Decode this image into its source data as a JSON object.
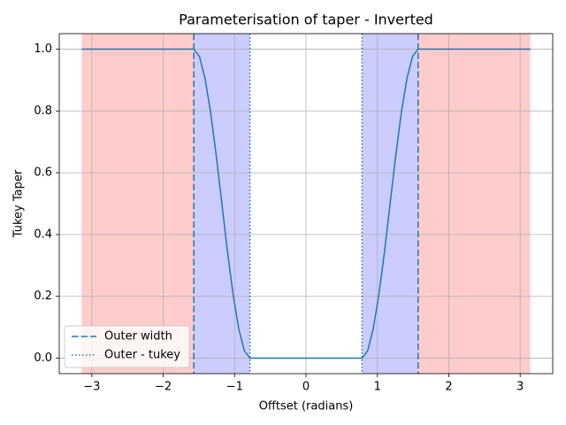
{
  "chart_data": {
    "type": "line",
    "title": "Parameterisation of taper - Inverted",
    "x_label": "Offtset (radians)",
    "y_label": "Tukey Taper",
    "xlim": [
      -3.456,
      3.456
    ],
    "ylim": [
      -0.05,
      1.05
    ],
    "xticks": [
      {
        "value": -3,
        "label": "−3"
      },
      {
        "value": -2,
        "label": "−2"
      },
      {
        "value": -1,
        "label": "−1"
      },
      0,
      1,
      2,
      3
    ],
    "yticks": [
      {
        "value": 0,
        "label": "0.0"
      },
      0.2,
      0.4,
      0.6,
      0.8,
      {
        "value": 1,
        "label": "1.0"
      }
    ],
    "grid": true,
    "legend": "lower left",
    "x": [
      -3.142,
      -1.571,
      -1.492,
      -1.414,
      -1.335,
      -1.257,
      -1.178,
      -1.1,
      -1.021,
      -0.942,
      -0.864,
      -0.785,
      0.785,
      0.864,
      0.942,
      1.021,
      1.1,
      1.178,
      1.257,
      1.335,
      1.414,
      1.492,
      1.571,
      3.142
    ],
    "series": [
      {
        "color": "#1f77b4",
        "values": [
          1,
          1,
          0.976,
          0.905,
          0.794,
          0.655,
          0.5,
          0.345,
          0.206,
          0.095,
          0.024,
          0,
          0,
          0.024,
          0.095,
          0.206,
          0.345,
          0.5,
          0.655,
          0.794,
          0.905,
          0.976,
          1,
          1
        ]
      }
    ],
    "vlines": [
      {
        "name": "Outer width",
        "color": "#1f77b4",
        "style": "dashed",
        "x": [
          -1.571,
          1.571
        ]
      },
      {
        "name": "Outer - tukey",
        "color": "#1f77b4",
        "style": "dotted",
        "x": [
          -0.785,
          0.785
        ]
      }
    ],
    "spans": [
      {
        "color": "#ffcccc",
        "x": [
          -3.142,
          -1.571
        ]
      },
      {
        "color": "#ffcccc",
        "x": [
          1.571,
          3.142
        ]
      },
      {
        "color": "#ccccff",
        "x": [
          -1.571,
          -0.785
        ]
      },
      {
        "color": "#ccccff",
        "x": [
          0.785,
          1.571
        ]
      }
    ]
  }
}
